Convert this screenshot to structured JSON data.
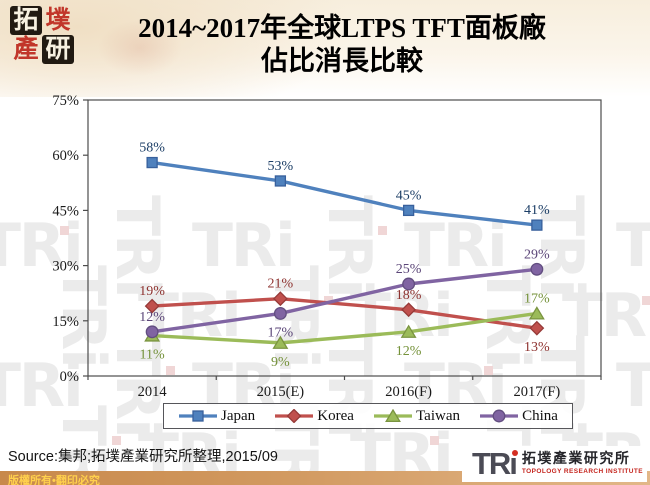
{
  "header": {
    "seal": [
      "拓",
      "墣",
      "產",
      "研"
    ],
    "title_line1": "2014~2017年全球LTPS TFT面板廠",
    "title_line2": "佔比消長比較"
  },
  "chart_data": {
    "type": "line",
    "title": "2014~2017年全球LTPS TFT面板廠佔比消長比較",
    "categories": [
      "2014",
      "2015(E)",
      "2016(F)",
      "2017(F)"
    ],
    "series": [
      {
        "name": "Japan",
        "values": [
          58,
          53,
          45,
          41
        ],
        "color": "#4f81bd",
        "border": "#38609c",
        "label_color": "#1c3e66",
        "marker": "square",
        "label_side": [
          "above",
          "above",
          "above",
          "above"
        ]
      },
      {
        "name": "Korea",
        "values": [
          19,
          21,
          18,
          13
        ],
        "color": "#c0504d",
        "border": "#963a38",
        "label_color": "#8e3330",
        "marker": "diamond",
        "label_side": [
          "above",
          "above",
          "above",
          "below"
        ]
      },
      {
        "name": "Taiwan",
        "values": [
          11,
          9,
          12,
          17
        ],
        "color": "#9bbb59",
        "border": "#7a9440",
        "label_color": "#75923a",
        "marker": "triangle",
        "label_side": [
          "below",
          "below",
          "below",
          "above"
        ]
      },
      {
        "name": "China",
        "values": [
          12,
          17,
          25,
          29
        ],
        "color": "#8064a2",
        "border": "#624e80",
        "label_color": "#5b4678",
        "marker": "circle",
        "label_side": [
          "above",
          "below",
          "above",
          "above"
        ]
      }
    ],
    "ylim": [
      0,
      75
    ],
    "ytick_step": 15,
    "yticks": [
      "75%",
      "60%",
      "45%",
      "30%",
      "15%",
      "0%"
    ],
    "unit": "%",
    "grid": false,
    "legend_position": "bottom"
  },
  "footer": {
    "source": "Source:集邦;拓墣產業研究所整理,2015/09",
    "copyright": "版權所有•翻印必究",
    "logo_tr": "TR",
    "logo_i": "ı",
    "tri_name_zh": "拓墣產業研究所",
    "tri_name_en": "TOPOLOGY RESEARCH INSTITUTE"
  },
  "watermark": "TRi"
}
